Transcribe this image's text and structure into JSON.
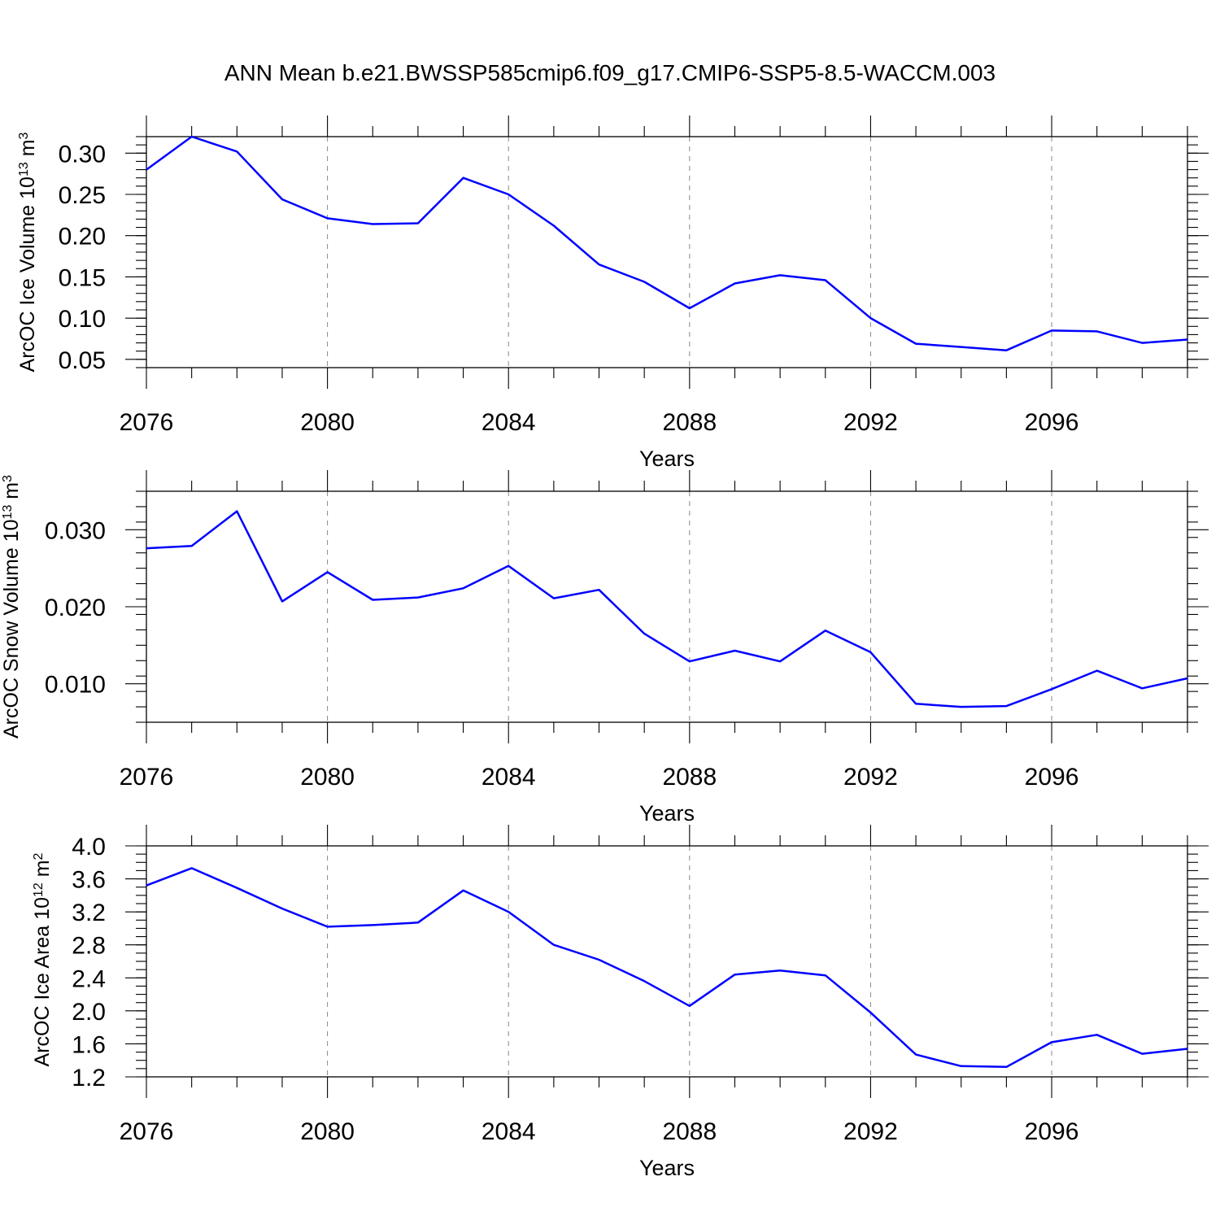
{
  "figure": {
    "title": "ANN Mean b.e21.BWSSP585cmip6.f09_g17.CMIP6-SSP5-8.5-WACCM.003",
    "line_color": "#0000ff"
  },
  "chart_data": [
    {
      "type": "line",
      "title": "ANN Mean b.e21.BWSSP585cmip6.f09_g17.CMIP6-SSP5-8.5-WACCM.003",
      "xlabel": "Years",
      "ylabel": {
        "base": "ArcOC Ice Volume 10",
        "exp": "13",
        "unit": " m",
        "unit_exp": "3"
      },
      "x": [
        2076,
        2077,
        2078,
        2079,
        2080,
        2081,
        2082,
        2083,
        2084,
        2085,
        2086,
        2087,
        2088,
        2089,
        2090,
        2091,
        2092,
        2093,
        2094,
        2095,
        2096,
        2097,
        2098,
        2099
      ],
      "series": [
        {
          "name": "ArcOC Ice Volume",
          "values": [
            0.28,
            0.32,
            0.302,
            0.244,
            0.221,
            0.214,
            0.215,
            0.27,
            0.25,
            0.212,
            0.165,
            0.144,
            0.112,
            0.142,
            0.152,
            0.146,
            0.1,
            0.069,
            0.065,
            0.061,
            0.085,
            0.084,
            0.07,
            0.074
          ]
        }
      ],
      "xlim": [
        2076,
        2099
      ],
      "ylim": [
        0.04,
        0.32
      ],
      "xticks": [
        2076,
        2080,
        2084,
        2088,
        2092,
        2096
      ],
      "xtick_labels": [
        "2076",
        "2080",
        "2084",
        "2088",
        "2092",
        "2096"
      ],
      "yticks": [
        0.05,
        0.1,
        0.15,
        0.2,
        0.25,
        0.3
      ],
      "ytick_labels": [
        "0.05",
        "0.10",
        "0.15",
        "0.20",
        "0.25",
        "0.30"
      ],
      "yminor_step": 0.01,
      "grid": "vertical dashed at major x ticks"
    },
    {
      "type": "line",
      "xlabel": "Years",
      "ylabel": {
        "base": "ArcOC Snow Volume 10",
        "exp": "13",
        "unit": " m",
        "unit_exp": "3"
      },
      "x": [
        2076,
        2077,
        2078,
        2079,
        2080,
        2081,
        2082,
        2083,
        2084,
        2085,
        2086,
        2087,
        2088,
        2089,
        2090,
        2091,
        2092,
        2093,
        2094,
        2095,
        2096,
        2097,
        2098,
        2099
      ],
      "series": [
        {
          "name": "ArcOC Snow Volume",
          "values": [
            0.0276,
            0.0279,
            0.0324,
            0.0207,
            0.0245,
            0.0209,
            0.0212,
            0.0224,
            0.0253,
            0.0211,
            0.0222,
            0.0165,
            0.0129,
            0.0143,
            0.0129,
            0.0169,
            0.0141,
            0.0074,
            0.007,
            0.0071,
            0.0093,
            0.0117,
            0.0094,
            0.0107
          ]
        }
      ],
      "xlim": [
        2076,
        2099
      ],
      "ylim": [
        0.005,
        0.035
      ],
      "xticks": [
        2076,
        2080,
        2084,
        2088,
        2092,
        2096
      ],
      "xtick_labels": [
        "2076",
        "2080",
        "2084",
        "2088",
        "2092",
        "2096"
      ],
      "yticks": [
        0.01,
        0.02,
        0.03
      ],
      "ytick_labels": [
        "0.010",
        "0.020",
        "0.030"
      ],
      "yminor_step": 0.002,
      "grid": "vertical dashed at major x ticks"
    },
    {
      "type": "line",
      "xlabel": "Years",
      "ylabel": {
        "base": "ArcOC Ice Area 10",
        "exp": "12",
        "unit": " m",
        "unit_exp": "2"
      },
      "x": [
        2076,
        2077,
        2078,
        2079,
        2080,
        2081,
        2082,
        2083,
        2084,
        2085,
        2086,
        2087,
        2088,
        2089,
        2090,
        2091,
        2092,
        2093,
        2094,
        2095,
        2096,
        2097,
        2098,
        2099
      ],
      "series": [
        {
          "name": "ArcOC Ice Area",
          "values": [
            3.52,
            3.73,
            3.49,
            3.24,
            3.02,
            3.04,
            3.07,
            3.46,
            3.2,
            2.8,
            2.62,
            2.36,
            2.06,
            2.44,
            2.49,
            2.43,
            1.98,
            1.47,
            1.33,
            1.32,
            1.62,
            1.71,
            1.48,
            1.54
          ]
        }
      ],
      "xlim": [
        2076,
        2099
      ],
      "ylim": [
        1.2,
        4.0
      ],
      "xticks": [
        2076,
        2080,
        2084,
        2088,
        2092,
        2096
      ],
      "xtick_labels": [
        "2076",
        "2080",
        "2084",
        "2088",
        "2092",
        "2096"
      ],
      "yticks": [
        1.2,
        1.6,
        2.0,
        2.4,
        2.8,
        3.2,
        3.6,
        4.0
      ],
      "ytick_labels": [
        "1.2",
        "1.6",
        "2.0",
        "2.4",
        "2.8",
        "3.2",
        "3.6",
        "4.0"
      ],
      "yminor_step": 0.1,
      "grid": "vertical dashed at major x ticks"
    }
  ]
}
